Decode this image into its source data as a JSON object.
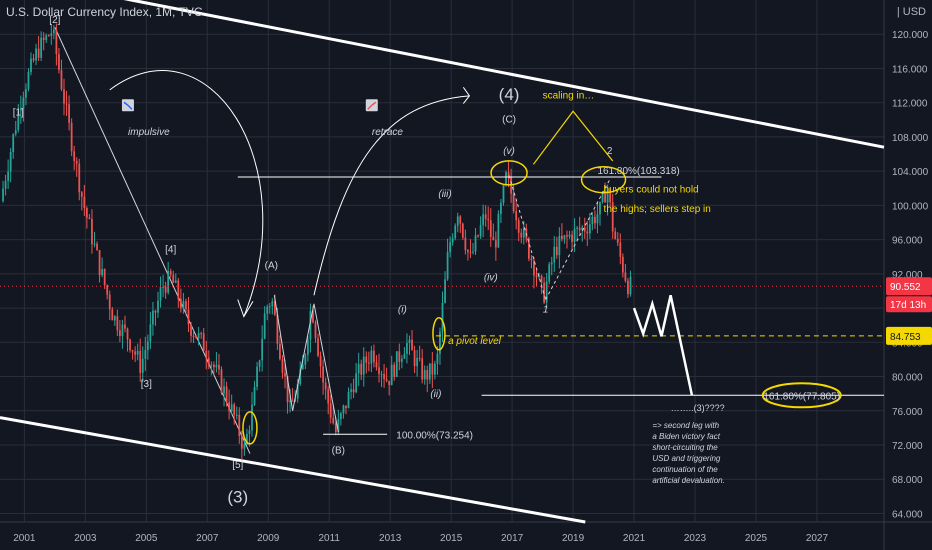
{
  "header": {
    "title": "U.S. Dollar Currency Index, 1M, TVC",
    "unit_label": "USD",
    "unit_marker": "|"
  },
  "chart_data": {
    "type": "candlestick",
    "title": "U.S. Dollar Currency Index, 1M, TVC",
    "x_ticks": [
      "2001",
      "2003",
      "2005",
      "2007",
      "2009",
      "2011",
      "2013",
      "2015",
      "2017",
      "2019",
      "2021",
      "2023",
      "2025",
      "2027"
    ],
    "y_ticks": [
      64.0,
      68.0,
      72.0,
      76.0,
      80.0,
      84.0,
      88.0,
      92.0,
      96.0,
      100.0,
      104.0,
      108.0,
      112.0,
      116.0,
      120.0
    ],
    "ylim": [
      63,
      124
    ],
    "xlim": [
      2000.2,
      2029.2
    ],
    "price_path": [
      [
        2000.3,
        100.5
      ],
      [
        2001.0,
        113.0
      ],
      [
        2001.5,
        118.0
      ],
      [
        2002.0,
        120.5
      ],
      [
        2002.5,
        110.0
      ],
      [
        2003.0,
        100.5
      ],
      [
        2003.5,
        93.5
      ],
      [
        2004.0,
        87.0
      ],
      [
        2004.5,
        84.5
      ],
      [
        2004.9,
        81.2
      ],
      [
        2005.6,
        90.5
      ],
      [
        2005.9,
        91.5
      ],
      [
        2006.5,
        86.0
      ],
      [
        2007.0,
        83.5
      ],
      [
        2007.5,
        79.5
      ],
      [
        2008.0,
        75.0
      ],
      [
        2008.3,
        71.5
      ],
      [
        2008.6,
        77.0
      ],
      [
        2009.0,
        88.0
      ],
      [
        2009.2,
        89.0
      ],
      [
        2009.8,
        76.0
      ],
      [
        2010.2,
        80.5
      ],
      [
        2010.5,
        88.5
      ],
      [
        2010.9,
        79.0
      ],
      [
        2011.3,
        73.5
      ],
      [
        2011.9,
        79.5
      ],
      [
        2012.5,
        83.0
      ],
      [
        2013.0,
        79.5
      ],
      [
        2013.6,
        84.0
      ],
      [
        2014.2,
        80.0
      ],
      [
        2014.6,
        81.0
      ],
      [
        2015.0,
        95.0
      ],
      [
        2015.3,
        99.5
      ],
      [
        2015.7,
        93.5
      ],
      [
        2016.2,
        99.0
      ],
      [
        2016.5,
        95.0
      ],
      [
        2016.9,
        103.5
      ],
      [
        2017.3,
        98.0
      ],
      [
        2017.8,
        93.0
      ],
      [
        2018.1,
        89.2
      ],
      [
        2018.5,
        95.0
      ],
      [
        2019.0,
        96.5
      ],
      [
        2019.5,
        97.5
      ],
      [
        2020.0,
        99.5
      ],
      [
        2020.2,
        102.5
      ],
      [
        2020.4,
        97.0
      ],
      [
        2020.7,
        93.0
      ],
      [
        2020.9,
        90.552
      ]
    ],
    "last_price": {
      "value": 90.552,
      "label": "90.552",
      "countdown": "17d 13h",
      "color": "#f23645"
    },
    "pivot_level": {
      "value": 84.753,
      "label": "84.753",
      "color": "#f5d800"
    },
    "waves": {
      "w1": "[1]",
      "w2": "[2]",
      "w3": "[3]",
      "w4": "[4]",
      "w5": "[5]",
      "big3": "(3)",
      "A": "(A)",
      "B": "(B)",
      "C": "(C)",
      "big4": "(4)",
      "i": "(i)",
      "ii": "(ii)",
      "iii": "(iii)",
      "iv": "(iv)",
      "v": "(v)",
      "one": "1",
      "two": "2",
      "target": "……..(3)????"
    },
    "fib_levels": [
      {
        "label": "161.80%(103.318)",
        "value": 103.318
      },
      {
        "label": "100.00%(73.254)",
        "value": 73.254
      },
      {
        "label": "161.80%(77.805)",
        "value": 77.805
      }
    ],
    "annotations": {
      "impulsive": "impulsive",
      "retrace": "retrace",
      "scaling": "scaling in…",
      "buyers_line1": "buyers could not hold",
      "buyers_line2": "the highs; sellers step in",
      "pivot_text": "a pivot level",
      "note_lines": [
        "=> second leg with",
        "a Biden victory fact",
        "short-circuiting the",
        "USD and triggering",
        "continuation of the",
        "artificial devaluation."
      ]
    },
    "colors": {
      "up": "#26a69a",
      "down": "#ef5350",
      "background": "#131722",
      "grid": "#2a2e39",
      "text": "#d1d4dc",
      "highlight": "#f5d800"
    }
  }
}
